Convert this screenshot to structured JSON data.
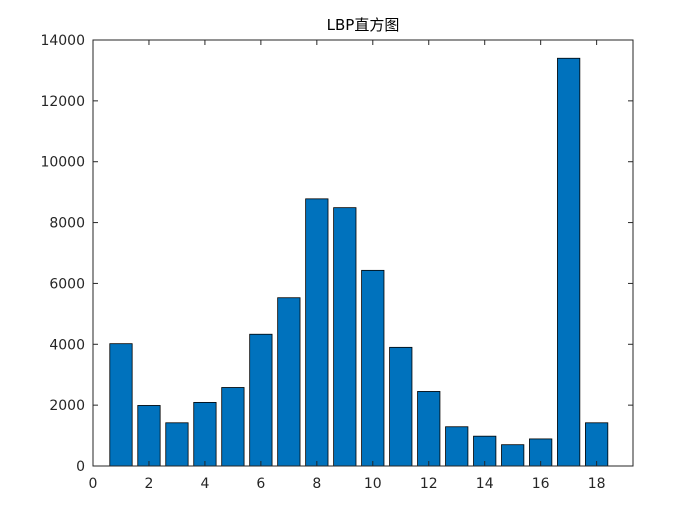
{
  "chart_data": {
    "type": "bar",
    "title": "LBP直方图",
    "xlabel": "",
    "ylabel": "",
    "x": [
      1,
      2,
      3,
      4,
      5,
      6,
      7,
      8,
      9,
      10,
      11,
      12,
      13,
      14,
      15,
      16,
      17,
      18
    ],
    "values": [
      4020,
      1990,
      1420,
      2090,
      2580,
      4330,
      5530,
      8780,
      8490,
      6430,
      3900,
      2450,
      1290,
      980,
      700,
      890,
      13400,
      1420
    ],
    "xlim": [
      0,
      19.3
    ],
    "ylim": [
      0,
      14000
    ],
    "xticks": [
      0,
      2,
      4,
      6,
      8,
      10,
      12,
      14,
      16,
      18
    ],
    "yticks": [
      0,
      2000,
      4000,
      6000,
      8000,
      10000,
      12000,
      14000
    ],
    "bar_color": "#0072BD",
    "bar_edge_color": "#000000",
    "grid": false
  }
}
